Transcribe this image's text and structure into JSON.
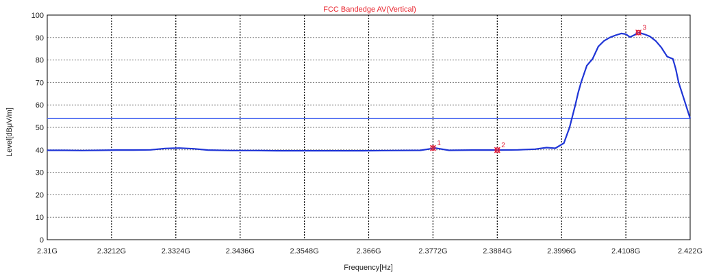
{
  "chart_data": {
    "type": "line",
    "title": "FCC Bandedge AV(Vertical)",
    "xlabel": "Frequency[Hz]",
    "ylabel": "Level[dBμV/m]",
    "x_ticks": [
      "2.31G",
      "2.3212G",
      "2.3324G",
      "2.3436G",
      "2.3548G",
      "2.366G",
      "2.3772G",
      "2.3884G",
      "2.3996G",
      "2.4108G",
      "2.422G"
    ],
    "y_ticks": [
      "0",
      "10",
      "20",
      "30",
      "40",
      "50",
      "60",
      "70",
      "80",
      "90",
      "100"
    ],
    "xlim": [
      2.31,
      2.422
    ],
    "ylim": [
      0,
      100
    ],
    "x_unit": "GHz",
    "grid": true,
    "colors": {
      "title": "#e8202a",
      "trace": "#1f35d6",
      "limit": "#4a68f0",
      "marker": "#e0203a",
      "frame": "#000000"
    },
    "series": [
      {
        "x": [
          2.31,
          2.313,
          2.316,
          2.319,
          2.322,
          2.325,
          2.328,
          2.3305,
          2.333,
          2.3355,
          2.338,
          2.342,
          2.346,
          2.35,
          2.355,
          2.36,
          2.365,
          2.37,
          2.375,
          2.3776,
          2.38,
          2.384,
          2.3884,
          2.392,
          2.395,
          2.397,
          2.3985,
          2.4,
          2.401,
          2.4015,
          2.402,
          2.4025,
          2.403,
          2.404,
          2.405,
          2.406,
          2.407,
          2.408,
          2.409,
          2.41,
          2.4108,
          2.4115,
          2.4122,
          2.413,
          2.414,
          2.415,
          2.416,
          2.417,
          2.418,
          2.419,
          2.4195,
          2.42,
          2.421,
          2.422
        ],
        "y": [
          39.8,
          39.8,
          39.7,
          39.8,
          39.9,
          39.9,
          40.0,
          40.6,
          40.8,
          40.5,
          39.9,
          39.7,
          39.7,
          39.6,
          39.6,
          39.6,
          39.6,
          39.7,
          39.8,
          40.8,
          39.8,
          39.9,
          39.9,
          40.0,
          40.3,
          41.0,
          40.7,
          43.0,
          50.0,
          55.0,
          60.0,
          65.5,
          70.0,
          77.5,
          80.5,
          86.0,
          88.5,
          90.0,
          91.0,
          91.8,
          91.5,
          90.2,
          91.0,
          92.2,
          91.5,
          90.5,
          88.5,
          85.5,
          81.5,
          80.5,
          76.0,
          70.0,
          62.0,
          54.0
        ]
      }
    ],
    "limit_line": {
      "y": 54
    },
    "markers": [
      {
        "label": "1",
        "x": 2.3772,
        "y": 40.8
      },
      {
        "label": "2",
        "x": 2.3884,
        "y": 39.9
      },
      {
        "label": "3",
        "x": 2.413,
        "y": 92.2
      }
    ]
  }
}
